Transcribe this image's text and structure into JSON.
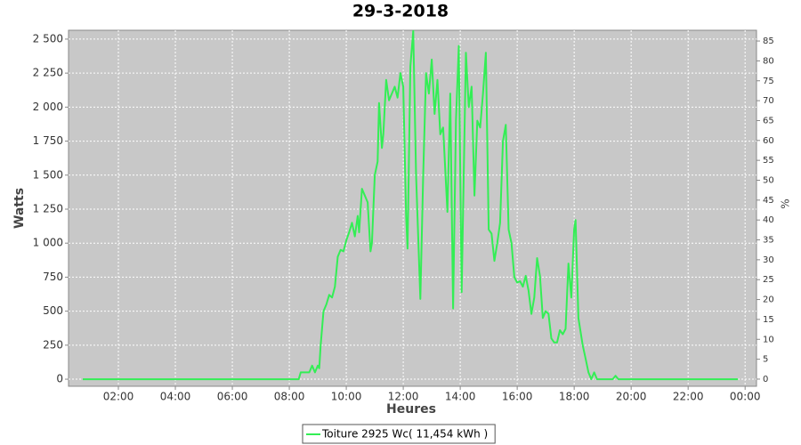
{
  "chart_data": {
    "type": "line",
    "title": "29-3-2018",
    "x_label": "Heures",
    "y_label": "Watts",
    "y2_label": "%",
    "x": [
      0.75,
      8.25,
      8.33,
      8.4,
      8.5,
      8.7,
      8.8,
      8.9,
      9.0,
      9.05,
      9.1,
      9.2,
      9.3,
      9.4,
      9.5,
      9.6,
      9.7,
      9.8,
      9.9,
      10.0,
      10.1,
      10.2,
      10.3,
      10.4,
      10.45,
      10.55,
      10.65,
      10.75,
      10.85,
      10.9,
      11.0,
      11.1,
      11.15,
      11.25,
      11.3,
      11.4,
      11.5,
      11.6,
      11.7,
      11.8,
      11.9,
      12.0,
      12.1,
      12.15,
      12.25,
      12.35,
      12.45,
      12.6,
      12.7,
      12.8,
      12.9,
      13.0,
      13.1,
      13.2,
      13.3,
      13.4,
      13.55,
      13.65,
      13.75,
      13.85,
      13.95,
      14.05,
      14.2,
      14.3,
      14.4,
      14.5,
      14.6,
      14.7,
      14.8,
      14.9,
      15.0,
      15.1,
      15.2,
      15.3,
      15.4,
      15.5,
      15.6,
      15.7,
      15.8,
      15.9,
      16.0,
      16.1,
      16.2,
      16.3,
      16.4,
      16.5,
      16.6,
      16.7,
      16.8,
      16.9,
      17.0,
      17.1,
      17.2,
      17.3,
      17.4,
      17.5,
      17.6,
      17.7,
      17.8,
      17.9,
      18.0,
      18.05,
      18.15,
      18.3,
      18.4,
      18.5,
      18.6,
      18.7,
      18.8,
      19.35,
      19.45,
      19.55,
      23.75
    ],
    "series": [
      {
        "name": "Toiture 2925 Wc( 11,454 kWh )",
        "color": "#33ee55",
        "values": [
          0,
          0,
          0,
          50,
          50,
          50,
          100,
          50,
          100,
          80,
          250,
          500,
          550,
          620,
          600,
          680,
          900,
          950,
          940,
          1020,
          1080,
          1150,
          1050,
          1200,
          1080,
          1400,
          1350,
          1300,
          940,
          1000,
          1500,
          1600,
          2030,
          1700,
          1800,
          2200,
          2050,
          2100,
          2150,
          2070,
          2250,
          2150,
          1200,
          960,
          2300,
          2560,
          1500,
          590,
          1500,
          2250,
          2100,
          2350,
          1950,
          2200,
          1800,
          1850,
          1230,
          2100,
          520,
          1900,
          2450,
          640,
          2400,
          2000,
          2150,
          1350,
          1900,
          1850,
          2100,
          2400,
          1100,
          1070,
          870,
          1000,
          1150,
          1750,
          1870,
          1100,
          1000,
          750,
          710,
          720,
          680,
          760,
          650,
          480,
          600,
          890,
          760,
          450,
          500,
          480,
          300,
          270,
          270,
          360,
          330,
          370,
          850,
          600,
          1100,
          1170,
          450,
          250,
          150,
          50,
          0,
          50,
          0,
          0,
          25,
          0,
          0
        ]
      }
    ],
    "xlim": [
      0.25,
      24.4
    ],
    "xticks": [
      {
        "value": 2,
        "label": "02:00"
      },
      {
        "value": 4,
        "label": "04:00"
      },
      {
        "value": 6,
        "label": "06:00"
      },
      {
        "value": 8,
        "label": "08:00"
      },
      {
        "value": 10,
        "label": "10:00"
      },
      {
        "value": 12,
        "label": "12:00"
      },
      {
        "value": 14,
        "label": "14:00"
      },
      {
        "value": 16,
        "label": "16:00"
      },
      {
        "value": 18,
        "label": "18:00"
      },
      {
        "value": 20,
        "label": "20:00"
      },
      {
        "value": 22,
        "label": "22:00"
      },
      {
        "value": 24,
        "label": "00:00"
      }
    ],
    "ylim": [
      -52,
      2565
    ],
    "yticks": [
      0,
      250,
      500,
      750,
      {
        "value": 1000,
        "label": "1 000"
      },
      {
        "value": 1250,
        "label": "1 250"
      },
      {
        "value": 1500,
        "label": "1 500"
      },
      {
        "value": 1750,
        "label": "1 750"
      },
      {
        "value": 2000,
        "label": "2 000"
      },
      {
        "value": 2250,
        "label": "2 250"
      },
      {
        "value": 2500,
        "label": "2 500"
      }
    ],
    "y2lim": [
      -1.8,
      87.7
    ],
    "y2ticks": [
      0,
      5,
      10,
      15,
      20,
      25,
      30,
      35,
      40,
      45,
      50,
      55,
      60,
      65,
      70,
      75,
      80,
      85
    ],
    "grid": true,
    "plot_background": "#c8c8c8",
    "legend": "bottom"
  }
}
